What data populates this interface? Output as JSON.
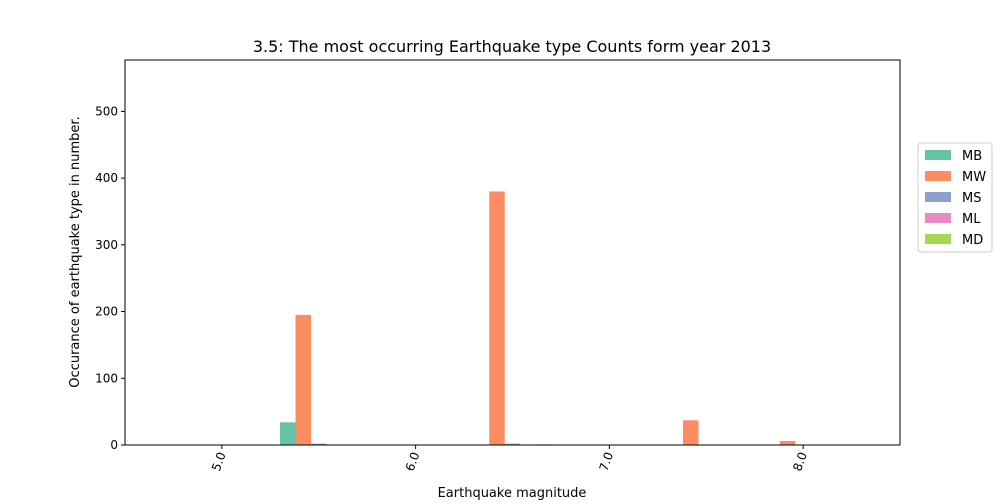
{
  "chart_data": {
    "type": "bar",
    "title": "3.5: The most occurring Earthquake type Counts form year 2013",
    "xlabel": "Earthquake magnitude",
    "ylabel": "Occurance of earthquake type in number.",
    "ylim": [
      0,
      577
    ],
    "yticks": [
      0,
      100,
      200,
      300,
      400,
      500
    ],
    "xlim": [
      4.5,
      8.5
    ],
    "xticks": [
      "5.0",
      "6.0",
      "7.0",
      "8.0"
    ],
    "grid": false,
    "legend_position": "right",
    "series": [
      {
        "name": "MB",
        "color": "#66c2a5",
        "x": [
          5.0,
          5.5,
          6.0,
          6.5,
          7.0,
          7.5,
          8.0
        ],
        "values": [
          0,
          34,
          0,
          0,
          0,
          0,
          0
        ]
      },
      {
        "name": "MW",
        "color": "#fc8d62",
        "x": [
          5.0,
          5.5,
          6.0,
          6.5,
          7.0,
          7.5,
          8.0
        ],
        "values": [
          0,
          195,
          0,
          380,
          0,
          37,
          6
        ]
      },
      {
        "name": "MS",
        "color": "#8da0cb",
        "x": [
          5.0,
          5.5,
          6.0,
          6.5,
          7.0,
          7.5,
          8.0
        ],
        "values": [
          0,
          2,
          0,
          2,
          0,
          0,
          0
        ]
      },
      {
        "name": "ML",
        "color": "#e78ac3",
        "x": [
          5.0,
          5.5,
          6.0,
          6.5,
          7.0,
          7.5,
          8.0
        ],
        "values": [
          0,
          0,
          0,
          0,
          0,
          0,
          0
        ]
      },
      {
        "name": "MD",
        "color": "#a6d854",
        "x": [
          5.0,
          5.5,
          6.0,
          6.5,
          7.0,
          7.5,
          8.0
        ],
        "values": [
          0,
          0,
          0,
          1,
          0,
          0,
          0
        ]
      }
    ]
  }
}
